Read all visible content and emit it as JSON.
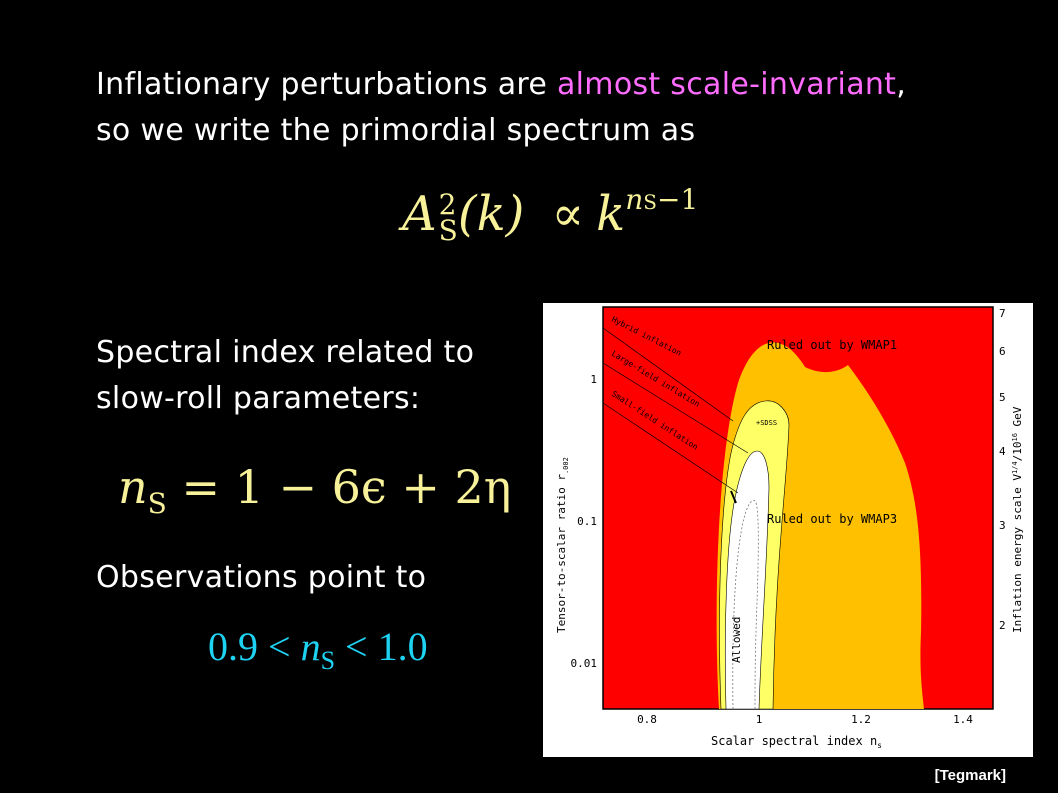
{
  "intro": {
    "line1_before": "Inflationary perturbations are ",
    "line1_highlight": "almost scale-invariant",
    "line1_after": ",",
    "line2": "so we write the primordial spectrum as"
  },
  "equation1": {
    "lhs_base": "A",
    "lhs_sup": "2",
    "lhs_sub": "S",
    "arg": "(k)",
    "op": "∝",
    "rhs_base": "k",
    "rhs_exp_base": "n",
    "rhs_exp_sub": "S",
    "rhs_exp_tail": "−1"
  },
  "spectral": {
    "line1": "Spectral index related to",
    "line2": "slow-roll parameters:"
  },
  "equation2": {
    "lhs_base": "n",
    "lhs_sub": "S",
    "rhs": " = 1 − 6ϵ + 2η"
  },
  "observations": {
    "text": "Observations point to",
    "range_left": "0.9 < ",
    "var": "n",
    "var_sub": "S",
    "range_right": " < 1.0"
  },
  "plot": {
    "xlabel": "Scalar spectral index n",
    "xlabel_sub": "s",
    "ylabel": "Tensor-to-scalar ratio r",
    "ylabel_sub": ".002",
    "y2label": "Inflation energy scale V",
    "y2label_tail": "/10",
    "y2label_tail2": " GeV",
    "x_ticks": [
      "0.8",
      "1",
      "1.2",
      "1.4"
    ],
    "y_ticks": [
      "1",
      "0.1",
      "0.01"
    ],
    "y2_ticks": [
      "7",
      "6",
      "5",
      "4",
      "3",
      "2"
    ],
    "regions": {
      "wmap1": "Ruled out by WMAP1",
      "wmap3": "Ruled out by WMAP3",
      "allowed": "Allowed",
      "sdss": "+SDSS"
    },
    "models": [
      "Hybrid inflation",
      "Large-field inflation",
      "Small-field inflation"
    ],
    "colors": {
      "red": "#ff0000",
      "orange": "#ffc000",
      "yellow": "#ffff66",
      "white": "#ffffff"
    }
  },
  "citation": "[Tegmark]"
}
